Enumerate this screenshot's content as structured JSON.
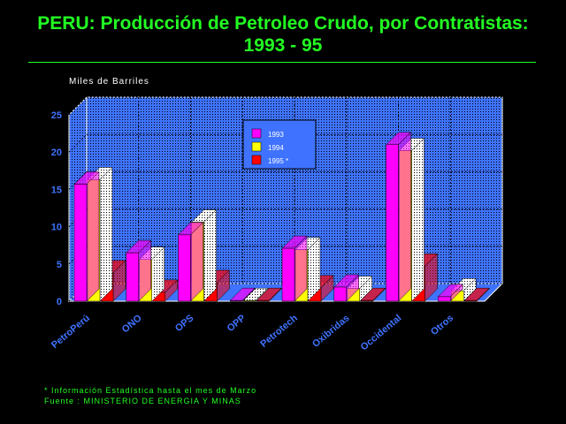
{
  "header": {
    "title_line1": "PERU: Producción de Petroleo Crudo, por Contratistas:",
    "title_line2": "1993 - 95"
  },
  "colors": {
    "title": "#22ff22",
    "plot_back": "#3f73ff",
    "plot_floor": "#3f73ff",
    "axis_text": "#3f73ff",
    "series_1993": "#ff00ff",
    "series_1994": "#ffff00",
    "series_1995": "#ff0000"
  },
  "chart_data": {
    "type": "bar",
    "title": "PERU: Producción de Petroleo Crudo, por Contratistas: 1993 - 95",
    "ylabel": "Miles de Barriles",
    "xlabel": "",
    "ylim": [
      0,
      25
    ],
    "yticks": [
      "0",
      "5",
      "10",
      "15",
      "20",
      "25"
    ],
    "grid": true,
    "legend_position": "top-center",
    "categories": [
      "PetroPerú",
      "ONO",
      "OPS",
      "OPP",
      "Petrotech",
      "Oxibridas",
      "Occidental",
      "Otros"
    ],
    "series": [
      {
        "name": "1993",
        "values": [
          15.7,
          6.5,
          8.9,
          0.1,
          7.1,
          1.9,
          21.0,
          0.6
        ]
      },
      {
        "name": "1994",
        "values": [
          16.3,
          5.6,
          10.6,
          0.1,
          6.9,
          1.7,
          20.2,
          1.4
        ]
      },
      {
        "name": "1995 *",
        "values": [
          3.8,
          1.2,
          2.5,
          0.1,
          1.8,
          0.1,
          4.7,
          0.1
        ]
      }
    ]
  },
  "footer": {
    "note": "* Información Estadística hasta el mes de Marzo",
    "source": "Fuente :   MINISTERIO DE ENERGIA Y MINAS"
  }
}
